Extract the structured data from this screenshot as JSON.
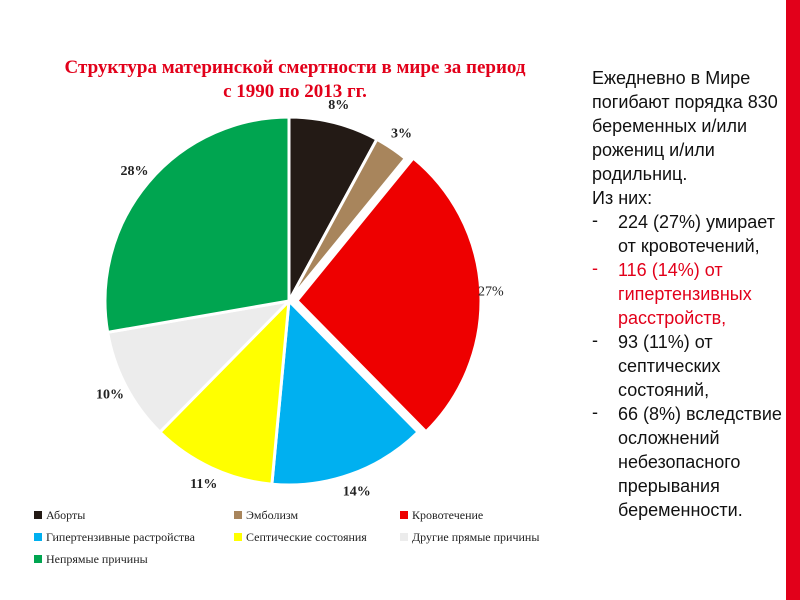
{
  "chart_data": {
    "type": "pie",
    "title": "Структура материнской смертности в мире за период с 1990 по 2013 гг.",
    "slices": [
      {
        "label": "Аборты",
        "value": 8,
        "display": "8%",
        "color": "#231a15",
        "bold": true
      },
      {
        "label": "Эмболизм",
        "value": 3,
        "display": "3%",
        "color": "#a8855c",
        "bold": true
      },
      {
        "label": "Кровотечение",
        "value": 27,
        "display": "27%",
        "color": "#ee0000",
        "bold": false
      },
      {
        "label": "Гипертензивные растройства",
        "value": 14,
        "display": "14%",
        "color": "#00b0f0",
        "bold": true
      },
      {
        "label": "Септические состояния",
        "value": 11,
        "display": "11%",
        "color": "#ffff00",
        "bold": true
      },
      {
        "label": "Другие прямые причины",
        "value": 10,
        "display": "10%",
        "color": "#ececec",
        "bold": true
      },
      {
        "label": "Непрямые причины",
        "value": 28,
        "display": "28%",
        "color": "#00a550",
        "bold": true
      }
    ],
    "legend_position": "bottom"
  },
  "side_text": {
    "intro": "Ежедневно  в Мире погибают порядка 830 беременных и/или рожениц и/или родильниц.",
    "from_them": "Из них:",
    "bullet_marker": "-",
    "bullets": [
      "224 (27%) умирает от кровотечений,",
      "116 (14%) от гипертензивных расстройств,",
      "93 (11%) от септических состояний,",
      "66 (8%) вследствие осложнений небезопасного прерывания беременности."
    ],
    "highlight_color": "#e2001a"
  },
  "accent_color": "#e2001a"
}
